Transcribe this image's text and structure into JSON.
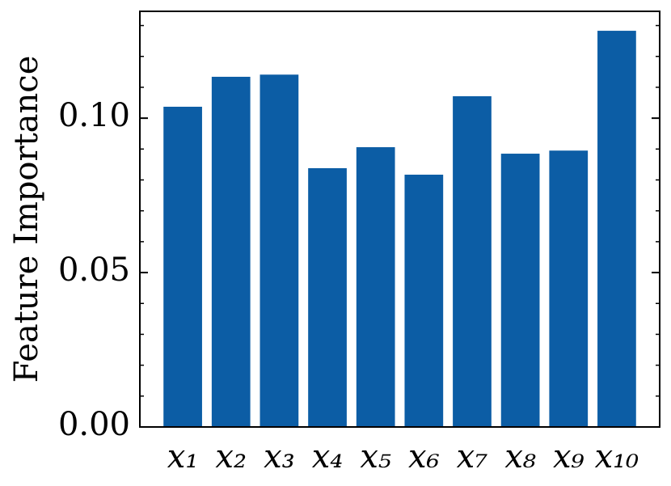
{
  "chart_data": {
    "type": "bar",
    "ylabel": "Feature Importance",
    "categories": [
      "x₁",
      "x₂",
      "x₃",
      "x₄",
      "x₅",
      "x₆",
      "x₇",
      "x₈",
      "x₉",
      "x₁₀"
    ],
    "values": [
      0.1037,
      0.1134,
      0.1141,
      0.0838,
      0.0906,
      0.0817,
      0.1071,
      0.0885,
      0.0895,
      0.1283
    ],
    "color": "#0c5da5",
    "ylim": [
      0,
      0.1346
    ],
    "yticks": [
      {
        "value": 0,
        "label": "0.00"
      },
      {
        "value": 0.05,
        "label": "0.05"
      },
      {
        "value": 0.1,
        "label": "0.10"
      }
    ],
    "yminorticks": [
      0.01,
      0.02,
      0.03,
      0.04,
      0.06,
      0.07,
      0.08,
      0.09,
      0.11,
      0.12,
      0.13
    ]
  }
}
